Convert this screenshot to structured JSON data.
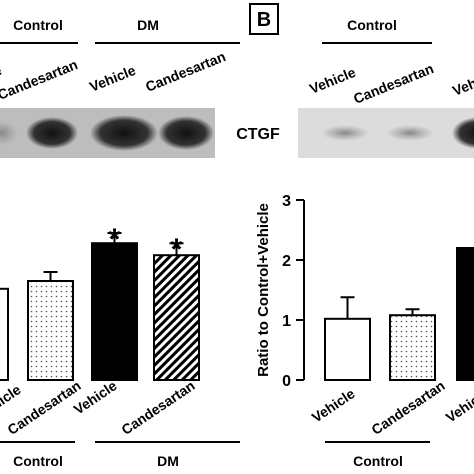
{
  "panel_label": "B",
  "blot_label": "CTGF",
  "blots": [
    {
      "groups": [
        "Control",
        "DM"
      ],
      "lanes": [
        "Vehicle",
        "Candesartan",
        "Vehicle",
        "Candesartan"
      ]
    },
    {
      "groups": [
        "Control"
      ],
      "lanes": [
        "Vehicle",
        "Candesartan",
        "Vehicle"
      ]
    }
  ],
  "chart_data": [
    {
      "type": "bar",
      "categories": [
        "Vehicle",
        "Candesartan",
        "Vehicle",
        "Candesartan"
      ],
      "values": [
        1.52,
        1.65,
        2.28,
        2.08
      ],
      "errors": [
        null,
        0.15,
        0.17,
        0.2
      ],
      "annotations": [
        null,
        null,
        "*",
        "*"
      ],
      "groups": [
        "Control",
        "DM"
      ]
    },
    {
      "type": "bar",
      "y_label": "Ratio to Control+Vehicle",
      "categories": [
        "Vehicle",
        "Candesartan",
        "Vehicle"
      ],
      "values": [
        1.02,
        1.08,
        2.2
      ],
      "errors": [
        0.36,
        0.1,
        null
      ],
      "groups": [
        "Control"
      ],
      "ylim": [
        0,
        3
      ],
      "yticks": [
        0,
        1,
        2,
        3
      ]
    }
  ]
}
